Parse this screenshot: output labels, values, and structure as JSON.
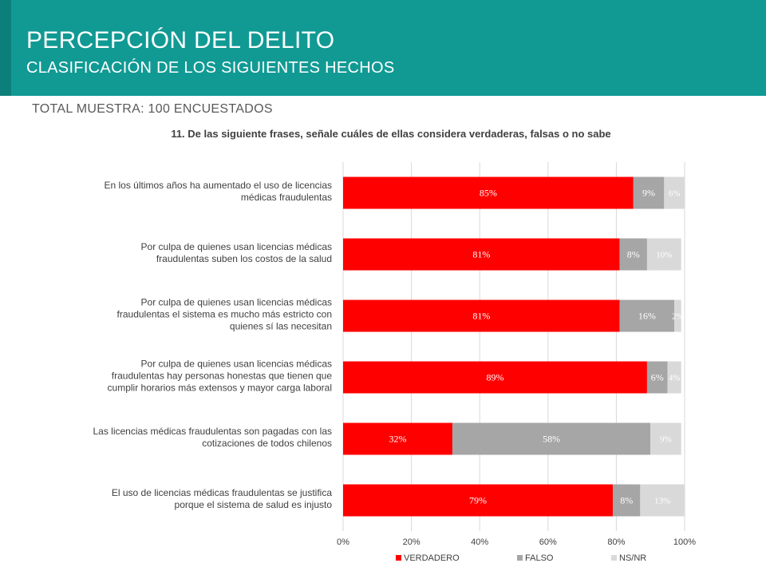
{
  "header": {
    "title": "PERCEPCIÓN DEL DELITO",
    "subtitle": "CLASIFICACIÓN DE LOS SIGUIENTES HECHOS"
  },
  "sample_label": "TOTAL MUESTRA: 100 ENCUESTADOS",
  "question": "11. De las siguiente frases, señale cuáles de ellas considera verdaderas, falsas o no sabe",
  "colors": {
    "header_bg": "#119a94",
    "verdadero": "#ff0000",
    "falso": "#a6a6a6",
    "nsnr": "#d9d9d9"
  },
  "chart_data": {
    "type": "bar",
    "orientation": "horizontal",
    "stacked": true,
    "categories": [
      [
        "En los últimos años ha aumentado el uso de licencias",
        "médicas fraudulentas"
      ],
      [
        "Por culpa de quienes usan licencias médicas",
        "fraudulentas suben los costos de la salud"
      ],
      [
        "Por culpa de quienes usan licencias médicas",
        "fraudulentas el sistema es mucho más estricto con",
        "quienes sí las necesitan"
      ],
      [
        "Por culpa de quienes usan licencias médicas",
        "fraudulentas hay personas honestas que tienen que",
        "cumplir horarios más extensos y mayor carga laboral"
      ],
      [
        "Las licencias médicas fraudulentas son pagadas con las",
        "cotizaciones de todos chilenos"
      ],
      [
        "El uso de licencias médicas fraudulentas se justifica",
        "porque el sistema de salud es injusto"
      ]
    ],
    "series": [
      {
        "name": "VERDADERO",
        "color": "#ff0000",
        "label_color": "#ffffff",
        "values": [
          85,
          81,
          81,
          89,
          32,
          79
        ]
      },
      {
        "name": "FALSO",
        "color": "#a6a6a6",
        "label_color": "#ffffff",
        "values": [
          9,
          8,
          16,
          6,
          58,
          8
        ]
      },
      {
        "name": "NS/NR",
        "color": "#d9d9d9",
        "label_color": "#ffffff",
        "values": [
          6,
          10,
          2,
          4,
          9,
          13
        ]
      }
    ],
    "data_labels": [
      [
        "85%",
        "81%",
        "81%",
        "89%",
        "32%",
        "79%"
      ],
      [
        "9%",
        "8%",
        "16%",
        "6%",
        "58%",
        "8%"
      ],
      [
        "6%",
        "10%",
        "2%",
        "4%",
        "9%",
        "13%"
      ]
    ],
    "xlim": [
      0,
      100
    ],
    "xticks": [
      0,
      20,
      40,
      60,
      80,
      100
    ],
    "xtick_labels": [
      "0%",
      "20%",
      "40%",
      "60%",
      "80%",
      "100%"
    ],
    "grid": true,
    "legend_position": "bottom"
  }
}
